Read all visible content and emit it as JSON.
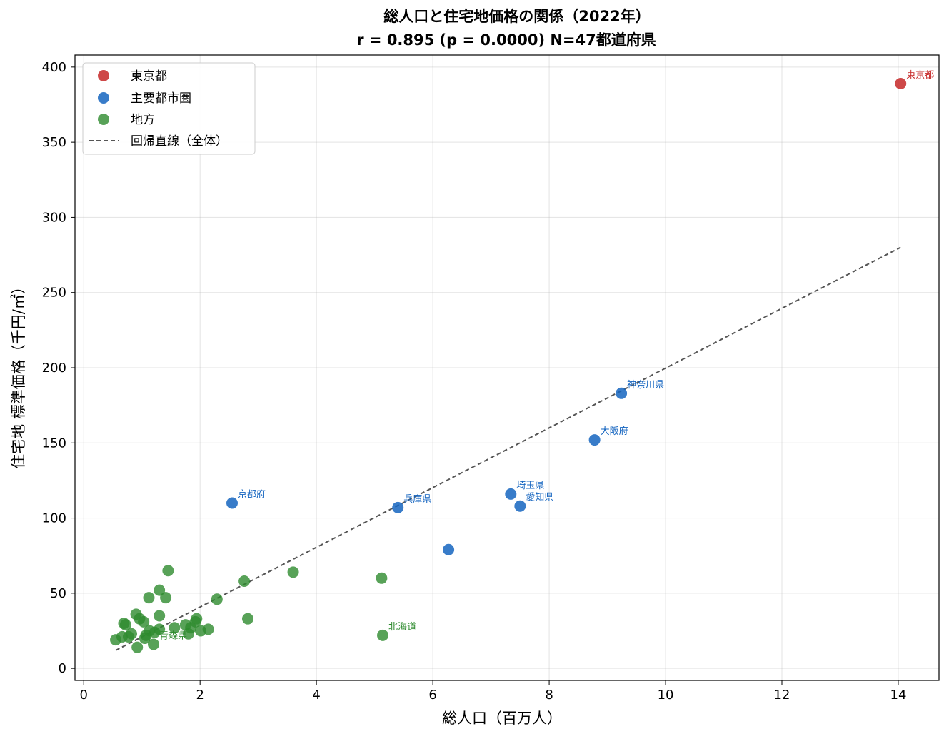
{
  "chart_data": {
    "type": "scatter",
    "title": "総人口と住宅地価格の関係（2022年）",
    "subtitle": "r = 0.895  (p = 0.0000)  N=47都道府県",
    "xlabel": "総人口（百万人）",
    "ylabel": "住宅地 標準価格（千円/㎡）",
    "xlim": [
      -0.15,
      14.7
    ],
    "ylim": [
      -8,
      408
    ],
    "xticks": [
      0,
      2,
      4,
      6,
      8,
      10,
      12,
      14
    ],
    "yticks": [
      0,
      50,
      100,
      150,
      200,
      250,
      300,
      350,
      400
    ],
    "grid": true,
    "legend_position": "top-left",
    "colors": {
      "tokyo": "#c62828",
      "metro": "#1565c0",
      "regional": "#2e8b2e",
      "regression": "#555555"
    },
    "series": [
      {
        "name": "東京都",
        "key": "tokyo",
        "points": [
          {
            "x": 14.04,
            "y": 389,
            "label": "東京都"
          }
        ]
      },
      {
        "name": "主要都市圏",
        "key": "metro",
        "points": [
          {
            "x": 9.24,
            "y": 183,
            "label": "神奈川県"
          },
          {
            "x": 8.78,
            "y": 152,
            "label": "大阪府"
          },
          {
            "x": 7.34,
            "y": 116,
            "label": "埼玉県"
          },
          {
            "x": 7.5,
            "y": 108,
            "label": "愛知県"
          },
          {
            "x": 5.4,
            "y": 107,
            "label": "兵庫県"
          },
          {
            "x": 2.55,
            "y": 110,
            "label": "京都府"
          },
          {
            "x": 6.27,
            "y": 79
          }
        ]
      },
      {
        "name": "地方",
        "key": "regional",
        "points": [
          {
            "x": 5.14,
            "y": 22,
            "label": "北海道"
          },
          {
            "x": 5.12,
            "y": 60
          },
          {
            "x": 3.6,
            "y": 64
          },
          {
            "x": 2.82,
            "y": 33
          },
          {
            "x": 2.76,
            "y": 58
          },
          {
            "x": 2.29,
            "y": 46
          },
          {
            "x": 2.14,
            "y": 26
          },
          {
            "x": 2.01,
            "y": 25
          },
          {
            "x": 1.94,
            "y": 33
          },
          {
            "x": 1.92,
            "y": 31
          },
          {
            "x": 1.84,
            "y": 27
          },
          {
            "x": 1.8,
            "y": 23
          },
          {
            "x": 1.75,
            "y": 29
          },
          {
            "x": 1.56,
            "y": 27
          },
          {
            "x": 1.45,
            "y": 65
          },
          {
            "x": 1.41,
            "y": 47
          },
          {
            "x": 1.3,
            "y": 52
          },
          {
            "x": 1.3,
            "y": 35
          },
          {
            "x": 1.3,
            "y": 26
          },
          {
            "x": 1.22,
            "y": 24
          },
          {
            "x": 1.2,
            "y": 16,
            "label": "青森県"
          },
          {
            "x": 1.13,
            "y": 25
          },
          {
            "x": 1.12,
            "y": 47
          },
          {
            "x": 1.07,
            "y": 22
          },
          {
            "x": 1.05,
            "y": 20
          },
          {
            "x": 1.03,
            "y": 31
          },
          {
            "x": 0.96,
            "y": 33
          },
          {
            "x": 0.92,
            "y": 14
          },
          {
            "x": 0.9,
            "y": 36
          },
          {
            "x": 0.82,
            "y": 23
          },
          {
            "x": 0.77,
            "y": 21
          },
          {
            "x": 0.72,
            "y": 29
          },
          {
            "x": 0.69,
            "y": 30
          },
          {
            "x": 0.66,
            "y": 21
          },
          {
            "x": 0.55,
            "y": 19
          }
        ]
      }
    ],
    "regression": {
      "name": "回帰直線（全体）",
      "x": [
        0.55,
        14.04
      ],
      "y": [
        12,
        280
      ]
    }
  }
}
